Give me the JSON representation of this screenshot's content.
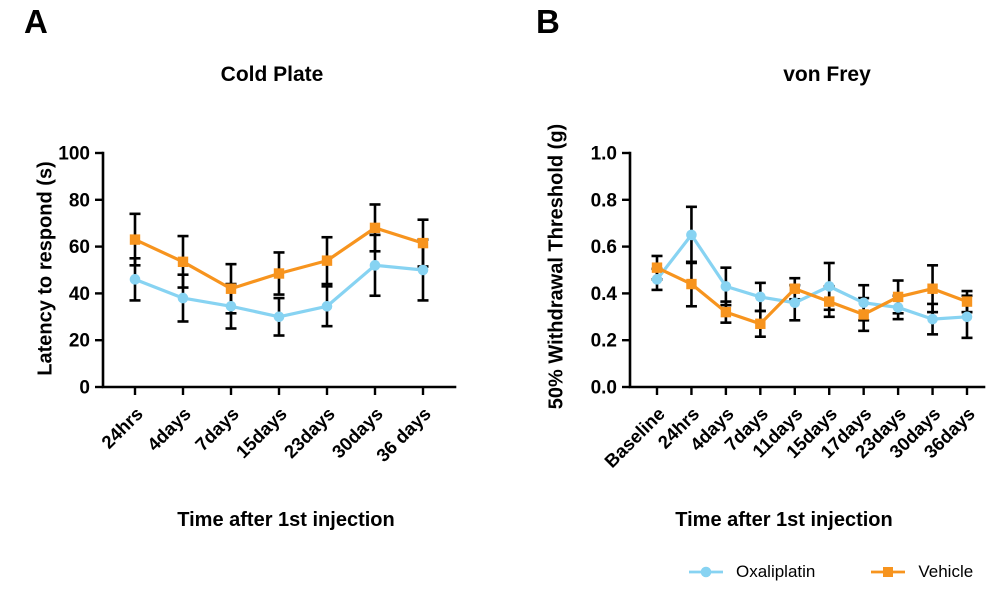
{
  "figure": {
    "panel_labels": [
      "A",
      "B"
    ],
    "legend": {
      "items": [
        {
          "label": "Oxaliplatin",
          "color": "#87d3f2",
          "marker": "circle"
        },
        {
          "label": "Vehicle",
          "color": "#f7941e",
          "marker": "square"
        }
      ]
    },
    "colors": {
      "oxaliplatin": "#87d3f2",
      "vehicle": "#f7941e",
      "axis": "#000000",
      "error_bar": "#000000",
      "background": "#ffffff"
    }
  },
  "chart_data": [
    {
      "type": "line",
      "title": "Cold Plate",
      "xlabel": "Time after 1st injection",
      "ylabel": "Latency to respond (s)",
      "categories": [
        "24hrs",
        "4days",
        "7days",
        "15days",
        "23days",
        "30days",
        "36 days"
      ],
      "ylim": [
        0,
        100
      ],
      "yticks": [
        "0",
        "20",
        "40",
        "60",
        "80",
        "100"
      ],
      "grid": false,
      "legend_position": "none",
      "error_bars": true,
      "series": [
        {
          "name": "Oxaliplatin",
          "marker": "circle",
          "color": "#87d3f2",
          "values": [
            46,
            38,
            34.5,
            30,
            34.5,
            52,
            50
          ],
          "errors": [
            9,
            10,
            9.5,
            8,
            8.5,
            13,
            13
          ]
        },
        {
          "name": "Vehicle",
          "marker": "square",
          "color": "#f7941e",
          "values": [
            63,
            53.5,
            42,
            48.5,
            54,
            68,
            61.5
          ],
          "errors": [
            11,
            11,
            10.5,
            9,
            10,
            10,
            10
          ]
        }
      ]
    },
    {
      "type": "line",
      "title": "von Frey",
      "xlabel": "Time after 1st injection",
      "ylabel": "50% Withdrawal Threshold (g)",
      "categories": [
        "Baseline",
        "24hrs",
        "4days",
        "7days",
        "11days",
        "15days",
        "17days",
        "23days",
        "30days",
        "36days"
      ],
      "ylim": [
        0,
        1.0
      ],
      "yticks": [
        "0.0",
        "0.2",
        "0.4",
        "0.6",
        "0.8",
        "1.0"
      ],
      "grid": false,
      "legend_position": "bottom-right",
      "error_bars": true,
      "series": [
        {
          "name": "Oxaliplatin",
          "marker": "circle",
          "color": "#87d3f2",
          "values": [
            0.46,
            0.65,
            0.43,
            0.385,
            0.36,
            0.43,
            0.36,
            0.34,
            0.29,
            0.3
          ],
          "errors": [
            0.045,
            0.12,
            0.08,
            0.06,
            0.075,
            0.1,
            0.075,
            0.05,
            0.065,
            0.09
          ]
        },
        {
          "name": "Vehicle",
          "marker": "square",
          "color": "#f7941e",
          "values": [
            0.51,
            0.44,
            0.32,
            0.27,
            0.42,
            0.365,
            0.31,
            0.385,
            0.42,
            0.365
          ],
          "errors": [
            0.05,
            0.095,
            0.045,
            0.055,
            0.045,
            0.065,
            0.07,
            0.07,
            0.1,
            0.045
          ]
        }
      ]
    }
  ]
}
